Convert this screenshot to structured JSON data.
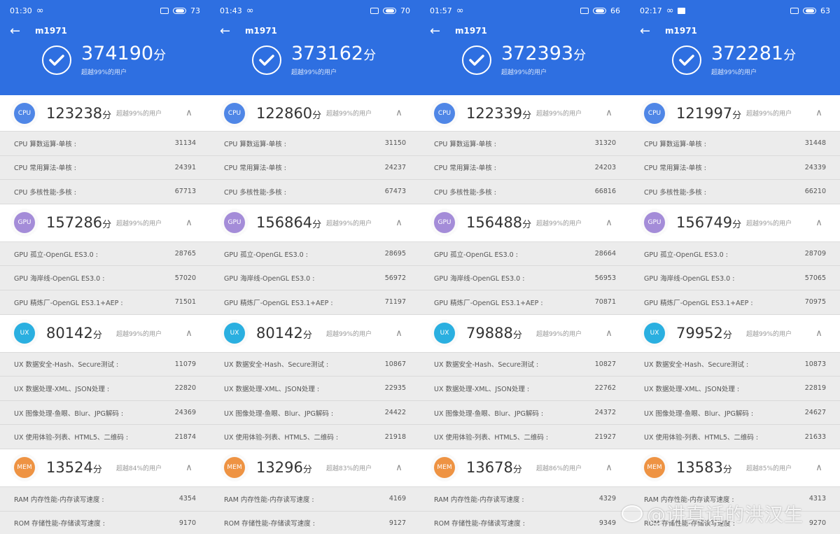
{
  "colors": {
    "header_blue": "#2e6fe1",
    "cpu": "#4f86e6",
    "gpu": "#a48cd8",
    "ux": "#2aafe0",
    "mem": "#ee9343"
  },
  "unit": "分",
  "panels": [
    {
      "status": {
        "time": "01:30",
        "battery": "73",
        "extra_icon": false
      },
      "device": "m1971",
      "total": "374190",
      "total_pct": "超越99%的用户",
      "sections": {
        "cpu": {
          "badge": "CPU",
          "score": "123238",
          "pct": "超越99%的用户",
          "rows": [
            {
              "label": "CPU 算数运算-单核 :",
              "value": "31134"
            },
            {
              "label": "CPU 常用算法-单核 :",
              "value": "24391"
            },
            {
              "label": "CPU 多核性能-多核 :",
              "value": "67713"
            }
          ]
        },
        "gpu": {
          "badge": "GPU",
          "score": "157286",
          "pct": "超越99%的用户",
          "rows": [
            {
              "label": "GPU 孤立-OpenGL ES3.0 :",
              "value": "28765"
            },
            {
              "label": "GPU 海岸线-OpenGL ES3.0 :",
              "value": "57020"
            },
            {
              "label": "GPU 精炼厂-OpenGL ES3.1+AEP :",
              "value": "71501"
            }
          ]
        },
        "ux": {
          "badge": "UX",
          "score": "80142",
          "pct": "超越99%的用户",
          "rows": [
            {
              "label": "UX 数据安全-Hash、Secure测试 :",
              "value": "11079"
            },
            {
              "label": "UX 数据处理-XML、JSON处理 :",
              "value": "22820"
            },
            {
              "label": "UX 图像处理-鱼眼、Blur、JPG解码 :",
              "value": "24369"
            },
            {
              "label": "UX 使用体验-列表、HTML5、二维码 :",
              "value": "21874"
            }
          ]
        },
        "mem": {
          "badge": "MEM",
          "score": "13524",
          "pct": "超越84%的用户",
          "rows": [
            {
              "label": "RAM 内存性能-内存读写速度 :",
              "value": "4354"
            },
            {
              "label": "ROM 存储性能-存储读写速度 :",
              "value": "9170"
            }
          ]
        }
      }
    },
    {
      "status": {
        "time": "01:43",
        "battery": "70",
        "extra_icon": false
      },
      "device": "m1971",
      "total": "373162",
      "total_pct": "超越99%的用户",
      "sections": {
        "cpu": {
          "badge": "CPU",
          "score": "122860",
          "pct": "超越99%的用户",
          "rows": [
            {
              "label": "CPU 算数运算-单核 :",
              "value": "31150"
            },
            {
              "label": "CPU 常用算法-单核 :",
              "value": "24237"
            },
            {
              "label": "CPU 多核性能-多核 :",
              "value": "67473"
            }
          ]
        },
        "gpu": {
          "badge": "GPU",
          "score": "156864",
          "pct": "超越99%的用户",
          "rows": [
            {
              "label": "GPU 孤立-OpenGL ES3.0 :",
              "value": "28695"
            },
            {
              "label": "GPU 海岸线-OpenGL ES3.0 :",
              "value": "56972"
            },
            {
              "label": "GPU 精炼厂-OpenGL ES3.1+AEP :",
              "value": "71197"
            }
          ]
        },
        "ux": {
          "badge": "UX",
          "score": "80142",
          "pct": "超越99%的用户",
          "rows": [
            {
              "label": "UX 数据安全-Hash、Secure测试 :",
              "value": "10867"
            },
            {
              "label": "UX 数据处理-XML、JSON处理 :",
              "value": "22935"
            },
            {
              "label": "UX 图像处理-鱼眼、Blur、JPG解码 :",
              "value": "24422"
            },
            {
              "label": "UX 使用体验-列表、HTML5、二维码 :",
              "value": "21918"
            }
          ]
        },
        "mem": {
          "badge": "MEM",
          "score": "13296",
          "pct": "超越83%的用户",
          "rows": [
            {
              "label": "RAM 内存性能-内存读写速度 :",
              "value": "4169"
            },
            {
              "label": "ROM 存储性能-存储读写速度 :",
              "value": "9127"
            }
          ]
        }
      }
    },
    {
      "status": {
        "time": "01:57",
        "battery": "66",
        "extra_icon": false
      },
      "device": "m1971",
      "total": "372393",
      "total_pct": "超越99%的用户",
      "sections": {
        "cpu": {
          "badge": "CPU",
          "score": "122339",
          "pct": "超越99%的用户",
          "rows": [
            {
              "label": "CPU 算数运算-单核 :",
              "value": "31320"
            },
            {
              "label": "CPU 常用算法-单核 :",
              "value": "24203"
            },
            {
              "label": "CPU 多核性能-多核 :",
              "value": "66816"
            }
          ]
        },
        "gpu": {
          "badge": "GPU",
          "score": "156488",
          "pct": "超越99%的用户",
          "rows": [
            {
              "label": "GPU 孤立-OpenGL ES3.0 :",
              "value": "28664"
            },
            {
              "label": "GPU 海岸线-OpenGL ES3.0 :",
              "value": "56953"
            },
            {
              "label": "GPU 精炼厂-OpenGL ES3.1+AEP :",
              "value": "70871"
            }
          ]
        },
        "ux": {
          "badge": "UX",
          "score": "79888",
          "pct": "超越99%的用户",
          "rows": [
            {
              "label": "UX 数据安全-Hash、Secure测试 :",
              "value": "10827"
            },
            {
              "label": "UX 数据处理-XML、JSON处理 :",
              "value": "22762"
            },
            {
              "label": "UX 图像处理-鱼眼、Blur、JPG解码 :",
              "value": "24372"
            },
            {
              "label": "UX 使用体验-列表、HTML5、二维码 :",
              "value": "21927"
            }
          ]
        },
        "mem": {
          "badge": "MEM",
          "score": "13678",
          "pct": "超越86%的用户",
          "rows": [
            {
              "label": "RAM 内存性能-内存读写速度 :",
              "value": "4329"
            },
            {
              "label": "ROM 存储性能-存储读写速度 :",
              "value": "9349"
            }
          ]
        }
      }
    },
    {
      "status": {
        "time": "02:17",
        "battery": "63",
        "extra_icon": true
      },
      "device": "m1971",
      "total": "372281",
      "total_pct": "超越99%的用户",
      "sections": {
        "cpu": {
          "badge": "CPU",
          "score": "121997",
          "pct": "超越99%的用户",
          "rows": [
            {
              "label": "CPU 算数运算-单核 :",
              "value": "31448"
            },
            {
              "label": "CPU 常用算法-单核 :",
              "value": "24339"
            },
            {
              "label": "CPU 多核性能-多核 :",
              "value": "66210"
            }
          ]
        },
        "gpu": {
          "badge": "GPU",
          "score": "156749",
          "pct": "超越99%的用户",
          "rows": [
            {
              "label": "GPU 孤立-OpenGL ES3.0 :",
              "value": "28709"
            },
            {
              "label": "GPU 海岸线-OpenGL ES3.0 :",
              "value": "57065"
            },
            {
              "label": "GPU 精炼厂-OpenGL ES3.1+AEP :",
              "value": "70975"
            }
          ]
        },
        "ux": {
          "badge": "UX",
          "score": "79952",
          "pct": "超越99%的用户",
          "rows": [
            {
              "label": "UX 数据安全-Hash、Secure测试 :",
              "value": "10873"
            },
            {
              "label": "UX 数据处理-XML、JSON处理 :",
              "value": "22819"
            },
            {
              "label": "UX 图像处理-鱼眼、Blur、JPG解码 :",
              "value": "24627"
            },
            {
              "label": "UX 使用体验-列表、HTML5、二维码 :",
              "value": "21633"
            }
          ]
        },
        "mem": {
          "badge": "MEM",
          "score": "13583",
          "pct": "超越85%的用户",
          "rows": [
            {
              "label": "RAM 内存性能-内存读写速度 :",
              "value": "4313"
            },
            {
              "label": "ROM 存储性能-存储读写速度 :",
              "value": "9270"
            }
          ]
        }
      }
    }
  ],
  "watermark": "@讲真话的洪汉生"
}
